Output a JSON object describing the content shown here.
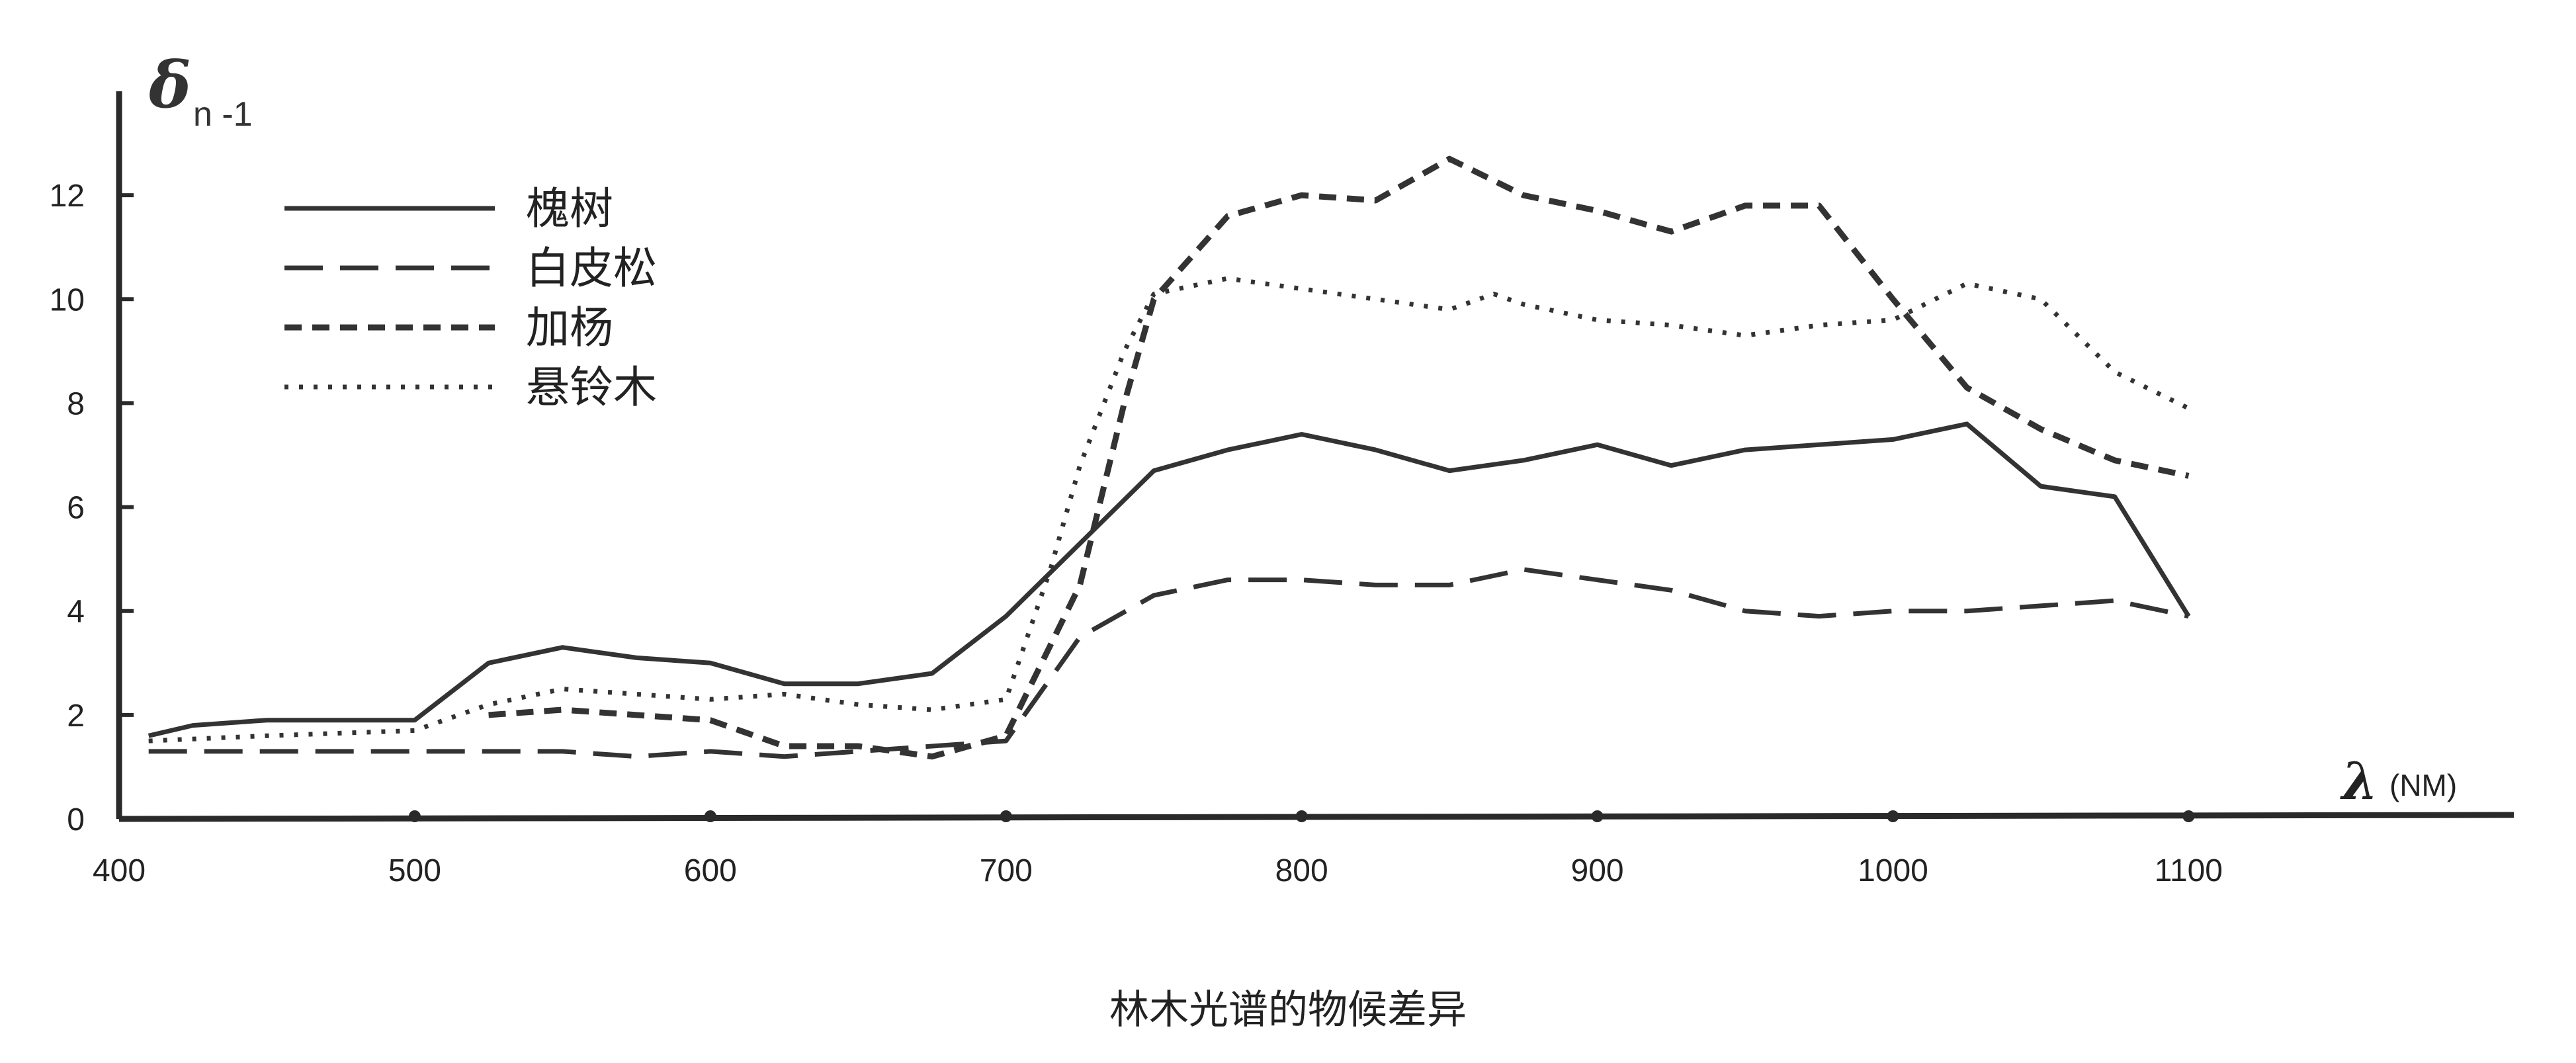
{
  "chart_data": {
    "type": "line",
    "title": "",
    "caption": "林木光谱的物候差异",
    "ylabel": "δ",
    "ylabel_sub": "n -1",
    "xlabel": "λ",
    "xlabel_unit": "(NM)",
    "xlim": [
      400,
      1210
    ],
    "ylim": [
      0,
      14
    ],
    "x_ticks": [
      "400",
      "500",
      "600",
      "700",
      "800",
      "900",
      "1000",
      "1100"
    ],
    "y_ticks": [
      "0",
      "2",
      "4",
      "6",
      "8",
      "10",
      "12"
    ],
    "legend_position": "top-left",
    "grid": false,
    "series": [
      {
        "name": "槐树",
        "style": "solid",
        "x": [
          410,
          425,
          450,
          475,
          500,
          525,
          550,
          575,
          600,
          625,
          650,
          675,
          700,
          725,
          750,
          775,
          800,
          825,
          850,
          875,
          900,
          925,
          950,
          975,
          1000,
          1025,
          1050,
          1075,
          1100
        ],
        "y": [
          1.6,
          1.8,
          1.9,
          1.9,
          1.9,
          3.0,
          3.3,
          3.1,
          3.0,
          2.6,
          2.6,
          2.8,
          3.9,
          5.3,
          6.7,
          7.1,
          7.4,
          7.1,
          6.7,
          6.9,
          7.2,
          6.8,
          7.1,
          7.2,
          7.3,
          7.6,
          6.4,
          6.2,
          3.9
        ]
      },
      {
        "name": "白皮松",
        "style": "long-dash",
        "x": [
          410,
          450,
          500,
          550,
          575,
          600,
          625,
          650,
          675,
          700,
          725,
          750,
          775,
          800,
          825,
          850,
          875,
          900,
          925,
          950,
          975,
          1000,
          1025,
          1050,
          1075,
          1100
        ],
        "y": [
          1.3,
          1.3,
          1.3,
          1.3,
          1.2,
          1.3,
          1.2,
          1.3,
          1.4,
          1.5,
          3.5,
          4.3,
          4.6,
          4.6,
          4.5,
          4.5,
          4.8,
          4.6,
          4.4,
          4.0,
          3.9,
          4.0,
          4.0,
          4.1,
          4.2,
          3.9
        ]
      },
      {
        "name": "加杨",
        "style": "short-dash",
        "x": [
          525,
          550,
          575,
          600,
          625,
          650,
          675,
          700,
          725,
          740,
          750,
          775,
          800,
          825,
          850,
          875,
          900,
          925,
          950,
          975,
          1000,
          1025,
          1050,
          1075,
          1100
        ],
        "y": [
          2.0,
          2.1,
          2.0,
          1.9,
          1.4,
          1.4,
          1.2,
          1.6,
          4.5,
          8.0,
          10.0,
          11.6,
          12.0,
          11.9,
          12.7,
          12.0,
          11.7,
          11.3,
          11.8,
          11.8,
          10.0,
          8.3,
          7.5,
          6.9,
          6.6
        ]
      },
      {
        "name": "悬铃木",
        "style": "dotted",
        "x": [
          410,
          450,
          500,
          525,
          550,
          575,
          600,
          625,
          650,
          675,
          700,
          715,
          725,
          740,
          750,
          775,
          800,
          825,
          850,
          865,
          875,
          900,
          925,
          950,
          975,
          1000,
          1025,
          1050,
          1075,
          1100
        ],
        "y": [
          1.5,
          1.6,
          1.7,
          2.2,
          2.5,
          2.4,
          2.3,
          2.4,
          2.2,
          2.1,
          2.3,
          4.8,
          6.8,
          9.0,
          10.1,
          10.4,
          10.2,
          10.0,
          9.8,
          10.1,
          9.9,
          9.6,
          9.5,
          9.3,
          9.5,
          9.6,
          10.3,
          10.0,
          8.6,
          7.9
        ]
      }
    ]
  }
}
